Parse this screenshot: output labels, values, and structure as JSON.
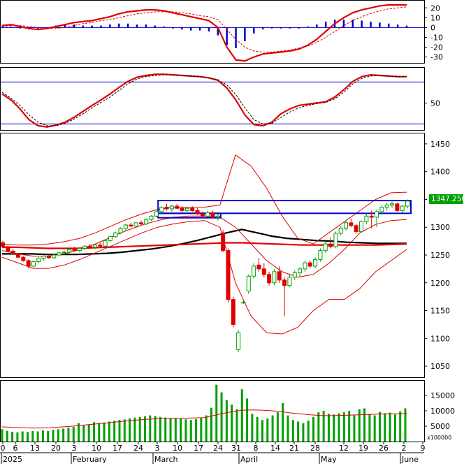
{
  "chart_data": [
    {
      "type": "line",
      "panel": "macd",
      "yaxis_ticks": [
        20,
        10,
        0,
        -10,
        -20,
        -30
      ],
      "ylim": [
        -36,
        28
      ],
      "grid": false,
      "histogram_color": "#0000cc",
      "series": [
        {
          "color": "#e00000",
          "style": "solid",
          "values": [
            2,
            3,
            1,
            -1,
            -2,
            -1,
            1,
            3,
            5,
            6,
            7,
            9,
            11,
            14,
            16,
            17,
            18,
            18,
            17,
            15,
            13,
            11,
            9,
            7,
            0,
            -20,
            -33,
            -34,
            -30,
            -27,
            -26,
            -25,
            -24,
            -22,
            -18,
            -12,
            -4,
            4,
            10,
            15,
            18,
            20,
            22,
            23,
            23,
            23
          ]
        },
        {
          "color": "#e00000",
          "style": "dashed",
          "values": [
            1,
            2,
            2,
            1,
            0,
            -1,
            -1,
            0,
            2,
            4,
            5,
            7,
            8,
            10,
            12,
            14,
            15,
            16,
            16,
            16,
            15,
            14,
            12,
            11,
            8,
            -2,
            -12,
            -20,
            -24,
            -25,
            -25,
            -24,
            -23,
            -21,
            -19,
            -15,
            -10,
            -4,
            2,
            7,
            11,
            14,
            17,
            19,
            20,
            21
          ]
        }
      ],
      "histogram": [
        1,
        1,
        -1,
        -2,
        -2,
        0,
        2,
        3,
        3,
        2,
        2,
        2,
        3,
        4,
        4,
        3,
        3,
        2,
        1,
        -1,
        -2,
        -3,
        -3,
        -4,
        -8,
        -18,
        -21,
        -14,
        -6,
        -2,
        -1,
        -1,
        -1,
        -1,
        1,
        3,
        6,
        8,
        8,
        8,
        7,
        6,
        5,
        4,
        3,
        2
      ]
    },
    {
      "type": "line",
      "panel": "rsi",
      "yaxis_ticks": [
        50
      ],
      "ylim": [
        5,
        110
      ],
      "reference_lines": [
        85,
        15
      ],
      "reference_color": "#0000cc",
      "series": [
        {
          "color": "#e00000",
          "style": "solid",
          "values": [
            65,
            55,
            40,
            22,
            12,
            10,
            13,
            18,
            26,
            36,
            46,
            55,
            65,
            76,
            86,
            93,
            96,
            98,
            98,
            97,
            96,
            95,
            94,
            92,
            88,
            75,
            55,
            30,
            14,
            12,
            18,
            32,
            40,
            46,
            48,
            50,
            52,
            60,
            72,
            86,
            94,
            97,
            96,
            95,
            94,
            94
          ]
        },
        {
          "color": "#000000",
          "style": "dashed",
          "values": [
            68,
            58,
            46,
            30,
            18,
            12,
            12,
            16,
            23,
            32,
            42,
            51,
            60,
            71,
            82,
            90,
            94,
            96,
            97,
            97,
            96,
            95,
            94,
            92,
            89,
            80,
            64,
            42,
            22,
            15,
            16,
            26,
            35,
            42,
            46,
            49,
            51,
            57,
            68,
            82,
            91,
            95,
            96,
            95,
            94,
            94
          ]
        }
      ]
    },
    {
      "type": "candlestick",
      "panel": "price",
      "yaxis_ticks": [
        1450,
        1400,
        1350,
        1300,
        1250,
        1200,
        1150,
        1100,
        1050
      ],
      "ylim": [
        1030,
        1470
      ],
      "last_price_label": "1347.250",
      "last_price_color": "#00a000",
      "up_color": "#00a000",
      "down_color": "#e00000",
      "candles": [
        [
          1272,
          1276,
          1262,
          1265
        ],
        [
          1265,
          1267,
          1255,
          1257
        ],
        [
          1257,
          1260,
          1250,
          1252
        ],
        [
          1252,
          1254,
          1244,
          1246
        ],
        [
          1246,
          1248,
          1238,
          1240
        ],
        [
          1240,
          1242,
          1226,
          1230
        ],
        [
          1230,
          1240,
          1228,
          1238
        ],
        [
          1238,
          1246,
          1235,
          1244
        ],
        [
          1244,
          1250,
          1240,
          1248
        ],
        [
          1248,
          1251,
          1243,
          1245
        ],
        [
          1245,
          1252,
          1243,
          1250
        ],
        [
          1250,
          1256,
          1247,
          1254
        ],
        [
          1254,
          1258,
          1250,
          1255
        ],
        [
          1255,
          1262,
          1253,
          1260
        ],
        [
          1260,
          1265,
          1256,
          1258
        ],
        [
          1258,
          1264,
          1255,
          1262
        ],
        [
          1262,
          1268,
          1259,
          1266
        ],
        [
          1266,
          1270,
          1262,
          1264
        ],
        [
          1264,
          1270,
          1260,
          1268
        ],
        [
          1268,
          1272,
          1264,
          1266
        ],
        [
          1266,
          1278,
          1264,
          1276
        ],
        [
          1276,
          1285,
          1273,
          1283
        ],
        [
          1283,
          1292,
          1281,
          1290
        ],
        [
          1290,
          1300,
          1288,
          1298
        ],
        [
          1298,
          1306,
          1294,
          1304
        ],
        [
          1304,
          1308,
          1300,
          1302
        ],
        [
          1302,
          1310,
          1299,
          1308
        ],
        [
          1308,
          1312,
          1304,
          1306
        ],
        [
          1306,
          1316,
          1304,
          1314
        ],
        [
          1314,
          1322,
          1311,
          1320
        ],
        [
          1320,
          1330,
          1318,
          1328
        ],
        [
          1328,
          1338,
          1325,
          1336
        ],
        [
          1336,
          1342,
          1330,
          1333
        ],
        [
          1333,
          1340,
          1328,
          1338
        ],
        [
          1338,
          1342,
          1332,
          1334
        ],
        [
          1334,
          1338,
          1326,
          1330
        ],
        [
          1330,
          1336,
          1324,
          1334
        ],
        [
          1334,
          1338,
          1328,
          1330
        ],
        [
          1330,
          1334,
          1322,
          1324
        ],
        [
          1324,
          1328,
          1316,
          1320
        ],
        [
          1320,
          1330,
          1318,
          1326
        ],
        [
          1326,
          1330,
          1316,
          1318
        ],
        [
          1318,
          1324,
          1312,
          1320
        ],
        [
          1290,
          1295,
          1255,
          1258
        ],
        [
          1258,
          1262,
          1165,
          1170
        ],
        [
          1170,
          1175,
          1120,
          1125
        ],
        [
          1080,
          1115,
          1075,
          1110
        ],
        [
          1165,
          1168,
          1162,
          1165
        ],
        [
          1185,
          1215,
          1180,
          1212
        ],
        [
          1212,
          1235,
          1208,
          1230
        ],
        [
          1232,
          1245,
          1220,
          1225
        ],
        [
          1225,
          1235,
          1210,
          1215
        ],
        [
          1215,
          1220,
          1195,
          1200
        ],
        [
          1200,
          1225,
          1195,
          1220
        ],
        [
          1220,
          1230,
          1200,
          1205
        ],
        [
          1205,
          1210,
          1140,
          1195
        ],
        [
          1195,
          1215,
          1192,
          1210
        ],
        [
          1210,
          1222,
          1205,
          1218
        ],
        [
          1218,
          1228,
          1212,
          1225
        ],
        [
          1225,
          1240,
          1220,
          1236
        ],
        [
          1236,
          1240,
          1226,
          1230
        ],
        [
          1230,
          1246,
          1226,
          1242
        ],
        [
          1242,
          1262,
          1238,
          1258
        ],
        [
          1258,
          1274,
          1254,
          1270
        ],
        [
          1270,
          1282,
          1262,
          1265
        ],
        [
          1265,
          1292,
          1262,
          1289
        ],
        [
          1289,
          1302,
          1285,
          1298
        ],
        [
          1298,
          1312,
          1294,
          1308
        ],
        [
          1308,
          1316,
          1300,
          1303
        ],
        [
          1303,
          1306,
          1288,
          1292
        ],
        [
          1292,
          1312,
          1290,
          1310
        ],
        [
          1310,
          1325,
          1305,
          1320
        ],
        [
          1320,
          1330,
          1298,
          1318
        ],
        [
          1318,
          1332,
          1300,
          1328
        ],
        [
          1328,
          1340,
          1322,
          1336
        ],
        [
          1336,
          1344,
          1330,
          1340
        ],
        [
          1340,
          1346,
          1335,
          1342
        ],
        [
          1342,
          1344,
          1328,
          1330
        ],
        [
          1330,
          1340,
          1326,
          1338
        ],
        [
          1338,
          1350,
          1334,
          1347
        ]
      ],
      "series": [
        {
          "name_key": "sma_black",
          "color": "#000000",
          "width": 2.2,
          "values": [
            1252,
            1252,
            1252,
            1251,
            1251,
            1251,
            1252,
            1253,
            1255,
            1258,
            1261,
            1265,
            1270,
            1276,
            1283,
            1290,
            1296,
            1290,
            1284,
            1280,
            1278,
            1276,
            1275,
            1273,
            1272,
            1271,
            1271,
            1271
          ]
        },
        {
          "name_key": "sma_red",
          "color": "#e00000",
          "width": 2.2,
          "values": [
            1264,
            1264,
            1263,
            1262,
            1262,
            1262,
            1263,
            1264,
            1265,
            1266,
            1267,
            1268,
            1269,
            1270,
            1271,
            1272,
            1272,
            1271,
            1270,
            1269,
            1268,
            1268,
            1268,
            1268,
            1268,
            1268,
            1269,
            1270
          ]
        },
        {
          "name_key": "bb_upper",
          "color": "#e00000",
          "width": 1,
          "values": [
            1270,
            1268,
            1268,
            1270,
            1274,
            1280,
            1290,
            1302,
            1314,
            1324,
            1332,
            1336,
            1336,
            1336,
            1340,
            1430,
            1410,
            1370,
            1320,
            1280,
            1270,
            1290,
            1310,
            1330,
            1350,
            1362,
            1363
          ]
        },
        {
          "name_key": "bb_lower",
          "color": "#e00000",
          "width": 1,
          "values": [
            1246,
            1236,
            1226,
            1226,
            1232,
            1242,
            1254,
            1266,
            1278,
            1290,
            1300,
            1306,
            1310,
            1312,
            1300,
            1200,
            1140,
            1110,
            1108,
            1120,
            1150,
            1170,
            1170,
            1190,
            1220,
            1240,
            1260
          ]
        },
        {
          "name_key": "bb_mid",
          "color": "#e00000",
          "width": 1,
          "values": [
            1258,
            1252,
            1248,
            1248,
            1252,
            1260,
            1270,
            1282,
            1294,
            1304,
            1312,
            1318,
            1320,
            1320,
            1318,
            1300,
            1270,
            1240,
            1220,
            1210,
            1215,
            1235,
            1260,
            1290,
            1305,
            1312,
            1314
          ]
        }
      ],
      "highlight_box": {
        "color": "#0000cc",
        "from_price": 1348,
        "to_price": 1325
      },
      "highlight_box_2": {
        "color": "#0000cc",
        "from_price": 1325,
        "to_price": 1317
      }
    },
    {
      "type": "bar",
      "panel": "volume",
      "yaxis_ticks": [
        15000,
        10000,
        5000
      ],
      "ylim": [
        0,
        20000
      ],
      "unit_label": "x100000",
      "bar_color": "#00a000",
      "ma_color": "#e00000",
      "values": [
        4000,
        3500,
        3200,
        3000,
        3300,
        3100,
        3400,
        3300,
        3600,
        3400,
        3800,
        4000,
        4200,
        4500,
        4800,
        6000,
        5200,
        5600,
        6300,
        6000,
        6200,
        6500,
        6800,
        7000,
        7200,
        7500,
        7800,
        8000,
        8200,
        8500,
        8300,
        8000,
        7800,
        7600,
        7500,
        7400,
        7200,
        7000,
        7300,
        7600,
        8500,
        11000,
        18500,
        16000,
        13500,
        12000,
        10500,
        17000,
        14000,
        9000,
        8000,
        7000,
        7500,
        8500,
        9500,
        12500,
        8500,
        7000,
        6500,
        6000,
        6800,
        8000,
        9500,
        10000,
        9000,
        8800,
        9200,
        9500,
        10000,
        8500,
        10500,
        10800,
        9000,
        8500,
        9600,
        9200,
        9400,
        8800,
        9800,
        10800
      ],
      "ma_values": [
        4800,
        4600,
        4500,
        4400,
        4400,
        4500,
        4700,
        4900,
        5200,
        5500,
        5800,
        6100,
        6400,
        6700,
        7000,
        7200,
        7400,
        7500,
        7600,
        7600,
        7700,
        7800,
        8500,
        9200,
        9800,
        10200,
        10300,
        10200,
        10000,
        9700,
        9300,
        9000,
        8700,
        8500,
        8400,
        8500,
        8600,
        8700,
        8800,
        8900,
        9000,
        9000,
        9100
      ]
    }
  ],
  "xaxis": {
    "day_labels": [
      "0",
      "6",
      "13",
      "20",
      "3",
      "10",
      "17",
      "24",
      "3",
      "10",
      "17",
      "24",
      "31",
      "8",
      "14",
      "21",
      "28",
      "12",
      "19",
      "26",
      "2",
      "9"
    ],
    "month_labels": [
      "2025",
      "February",
      "March",
      "April",
      "May",
      "June"
    ]
  }
}
